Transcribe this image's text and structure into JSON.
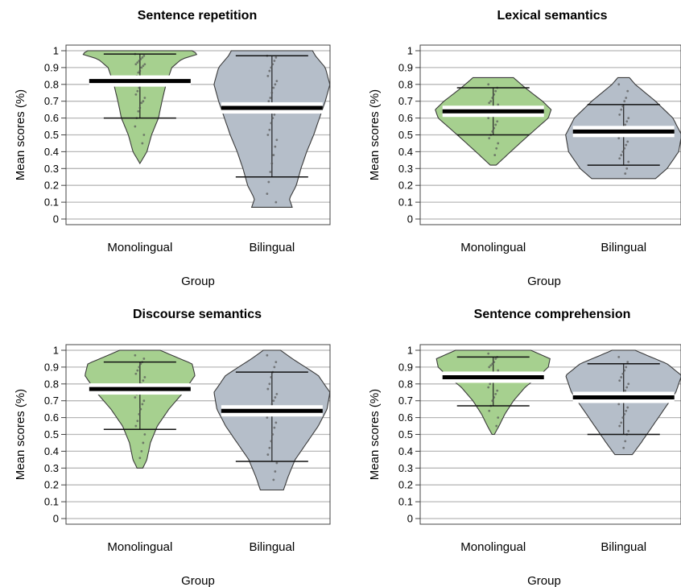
{
  "chart_data": [
    {
      "type": "pirate",
      "title": "Sentence repetition",
      "xlabel": "Group",
      "ylabel": "Mean scores (%)",
      "ylim": [
        0,
        1
      ],
      "yticks": [
        "0",
        "0.1",
        "0.2",
        "0.3",
        "0.4",
        "0.5",
        "0.6",
        "0.7",
        "0.8",
        "0.9",
        "1"
      ],
      "grid": true,
      "categories": [
        "Monolingual",
        "Bilingual"
      ],
      "groups": [
        {
          "name": "Monolingual",
          "color": "#a6d08f",
          "mean": 0.82,
          "hdi": [
            0.6,
            0.98
          ],
          "range": [
            0.33,
            1.0
          ],
          "density": [
            [
              0.33,
              0.0
            ],
            [
              0.4,
              0.12
            ],
            [
              0.5,
              0.2
            ],
            [
              0.6,
              0.32
            ],
            [
              0.7,
              0.38
            ],
            [
              0.8,
              0.45
            ],
            [
              0.9,
              0.55
            ],
            [
              0.95,
              0.72
            ],
            [
              0.98,
              1.0
            ],
            [
              1.0,
              0.9
            ]
          ],
          "points": [
            0.98,
            0.97,
            0.96,
            0.95,
            0.94,
            0.93,
            0.92,
            0.92,
            0.91,
            0.9,
            0.88,
            0.87,
            0.85,
            0.84,
            0.83,
            0.82,
            0.8,
            0.78,
            0.76,
            0.74,
            0.72,
            0.7,
            0.69,
            0.66,
            0.64,
            0.6,
            0.55,
            0.5,
            0.45
          ]
        },
        {
          "name": "Bilingual",
          "color": "#b5bec9",
          "mean": 0.66,
          "hdi": [
            0.25,
            0.97
          ],
          "range": [
            0.07,
            1.0
          ],
          "density": [
            [
              0.07,
              0.35
            ],
            [
              0.12,
              0.3
            ],
            [
              0.2,
              0.42
            ],
            [
              0.3,
              0.5
            ],
            [
              0.4,
              0.6
            ],
            [
              0.5,
              0.72
            ],
            [
              0.6,
              0.82
            ],
            [
              0.7,
              0.92
            ],
            [
              0.8,
              1.0
            ],
            [
              0.9,
              0.92
            ],
            [
              0.97,
              0.75
            ],
            [
              1.0,
              0.7
            ]
          ],
          "points": [
            0.97,
            0.96,
            0.94,
            0.92,
            0.9,
            0.88,
            0.85,
            0.82,
            0.8,
            0.78,
            0.75,
            0.72,
            0.7,
            0.68,
            0.65,
            0.62,
            0.6,
            0.57,
            0.53,
            0.5,
            0.47,
            0.43,
            0.38,
            0.33,
            0.28,
            0.22,
            0.15,
            0.1
          ]
        }
      ]
    },
    {
      "type": "pirate",
      "title": "Lexical semantics",
      "xlabel": "Group",
      "ylabel": "Mean scores (%)",
      "ylim": [
        0,
        1
      ],
      "yticks": [
        "0",
        "0.1",
        "0.2",
        "0.3",
        "0.4",
        "0.5",
        "0.6",
        "0.7",
        "0.8",
        "0.9",
        "1"
      ],
      "grid": true,
      "categories": [
        "Monolingual",
        "Bilingual"
      ],
      "groups": [
        {
          "name": "Monolingual",
          "color": "#a6d08f",
          "mean": 0.64,
          "hdi": [
            0.5,
            0.78
          ],
          "range": [
            0.32,
            0.84
          ],
          "density": [
            [
              0.32,
              0.05
            ],
            [
              0.4,
              0.3
            ],
            [
              0.5,
              0.62
            ],
            [
              0.6,
              0.95
            ],
            [
              0.65,
              1.0
            ],
            [
              0.7,
              0.85
            ],
            [
              0.78,
              0.55
            ],
            [
              0.84,
              0.35
            ]
          ],
          "points": [
            0.8,
            0.78,
            0.76,
            0.74,
            0.72,
            0.7,
            0.69,
            0.68,
            0.66,
            0.65,
            0.64,
            0.63,
            0.62,
            0.6,
            0.58,
            0.56,
            0.54,
            0.52,
            0.5,
            0.48,
            0.45,
            0.42,
            0.38
          ]
        },
        {
          "name": "Bilingual",
          "color": "#b5bec9",
          "mean": 0.52,
          "hdi": [
            0.32,
            0.68
          ],
          "range": [
            0.24,
            0.84
          ],
          "density": [
            [
              0.24,
              0.55
            ],
            [
              0.3,
              0.75
            ],
            [
              0.4,
              0.95
            ],
            [
              0.5,
              1.0
            ],
            [
              0.6,
              0.85
            ],
            [
              0.7,
              0.55
            ],
            [
              0.8,
              0.2
            ],
            [
              0.84,
              0.1
            ]
          ],
          "points": [
            0.8,
            0.76,
            0.72,
            0.7,
            0.67,
            0.65,
            0.62,
            0.6,
            0.58,
            0.56,
            0.54,
            0.52,
            0.5,
            0.48,
            0.46,
            0.44,
            0.42,
            0.4,
            0.38,
            0.36,
            0.34,
            0.3,
            0.27
          ]
        }
      ]
    },
    {
      "type": "pirate",
      "title": "Discourse semantics",
      "xlabel": "Group",
      "ylabel": "Mean scores (%)",
      "ylim": [
        0,
        1
      ],
      "yticks": [
        "0",
        "0.1",
        "0.2",
        "0.3",
        "0.4",
        "0.5",
        "0.6",
        "0.7",
        "0.8",
        "0.9",
        "1"
      ],
      "grid": true,
      "categories": [
        "Monolingual",
        "Bilingual"
      ],
      "groups": [
        {
          "name": "Monolingual",
          "color": "#a6d08f",
          "mean": 0.77,
          "hdi": [
            0.53,
            0.93
          ],
          "range": [
            0.3,
            1.0
          ],
          "density": [
            [
              0.3,
              0.05
            ],
            [
              0.35,
              0.12
            ],
            [
              0.45,
              0.18
            ],
            [
              0.55,
              0.3
            ],
            [
              0.65,
              0.5
            ],
            [
              0.75,
              0.75
            ],
            [
              0.85,
              0.95
            ],
            [
              0.92,
              0.9
            ],
            [
              0.97,
              0.55
            ],
            [
              1.0,
              0.35
            ]
          ],
          "points": [
            0.97,
            0.95,
            0.93,
            0.92,
            0.9,
            0.88,
            0.86,
            0.84,
            0.82,
            0.8,
            0.78,
            0.76,
            0.74,
            0.72,
            0.7,
            0.68,
            0.65,
            0.62,
            0.58,
            0.55,
            0.5,
            0.45,
            0.4,
            0.36
          ]
        },
        {
          "name": "Bilingual",
          "color": "#b5bec9",
          "mean": 0.64,
          "hdi": [
            0.34,
            0.87
          ],
          "range": [
            0.17,
            1.0
          ],
          "density": [
            [
              0.17,
              0.2
            ],
            [
              0.25,
              0.28
            ],
            [
              0.35,
              0.4
            ],
            [
              0.45,
              0.6
            ],
            [
              0.55,
              0.8
            ],
            [
              0.65,
              0.95
            ],
            [
              0.75,
              1.0
            ],
            [
              0.85,
              0.8
            ],
            [
              0.95,
              0.35
            ],
            [
              1.0,
              0.15
            ]
          ],
          "points": [
            0.97,
            0.93,
            0.9,
            0.87,
            0.84,
            0.8,
            0.77,
            0.74,
            0.72,
            0.7,
            0.68,
            0.65,
            0.62,
            0.6,
            0.57,
            0.54,
            0.5,
            0.46,
            0.42,
            0.38,
            0.33,
            0.28,
            0.23
          ]
        }
      ]
    },
    {
      "type": "pirate",
      "title": "Sentence comprehension",
      "xlabel": "Group",
      "ylabel": "Mean scores (%)",
      "ylim": [
        0,
        1
      ],
      "yticks": [
        "0",
        "0.1",
        "0.2",
        "0.3",
        "0.4",
        "0.5",
        "0.6",
        "0.7",
        "0.8",
        "0.9",
        "1"
      ],
      "grid": true,
      "categories": [
        "Monolingual",
        "Bilingual"
      ],
      "groups": [
        {
          "name": "Monolingual",
          "color": "#a6d08f",
          "mean": 0.84,
          "hdi": [
            0.67,
            0.96
          ],
          "range": [
            0.5,
            1.0
          ],
          "density": [
            [
              0.5,
              0.02
            ],
            [
              0.55,
              0.1
            ],
            [
              0.62,
              0.2
            ],
            [
              0.7,
              0.35
            ],
            [
              0.78,
              0.55
            ],
            [
              0.85,
              0.8
            ],
            [
              0.9,
              0.95
            ],
            [
              0.95,
              0.98
            ],
            [
              1.0,
              0.65
            ]
          ],
          "points": [
            0.98,
            0.96,
            0.95,
            0.93,
            0.92,
            0.91,
            0.9,
            0.88,
            0.86,
            0.85,
            0.84,
            0.82,
            0.8,
            0.78,
            0.76,
            0.74,
            0.72,
            0.7,
            0.67,
            0.64,
            0.6,
            0.55
          ]
        },
        {
          "name": "Bilingual",
          "color": "#b5bec9",
          "mean": 0.72,
          "hdi": [
            0.5,
            0.92
          ],
          "range": [
            0.38,
            1.0
          ],
          "density": [
            [
              0.38,
              0.15
            ],
            [
              0.45,
              0.3
            ],
            [
              0.55,
              0.5
            ],
            [
              0.65,
              0.7
            ],
            [
              0.75,
              0.9
            ],
            [
              0.85,
              1.0
            ],
            [
              0.92,
              0.75
            ],
            [
              0.97,
              0.4
            ],
            [
              1.0,
              0.2
            ]
          ],
          "points": [
            0.96,
            0.93,
            0.9,
            0.88,
            0.86,
            0.84,
            0.82,
            0.8,
            0.78,
            0.76,
            0.74,
            0.72,
            0.7,
            0.68,
            0.66,
            0.64,
            0.62,
            0.6,
            0.57,
            0.55,
            0.52,
            0.5,
            0.46,
            0.42
          ]
        }
      ]
    }
  ]
}
